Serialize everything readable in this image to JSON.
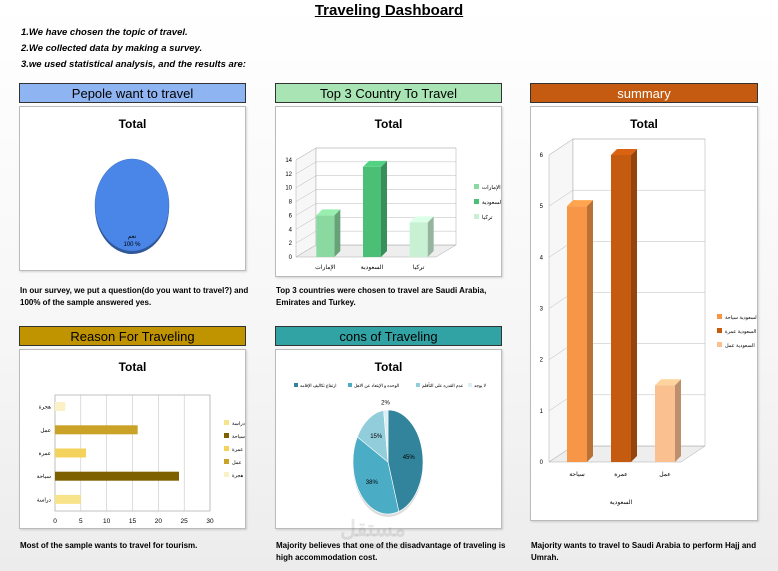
{
  "page": {
    "title": "Traveling Dashboard",
    "intro": [
      "1.We have chosen the topic of travel.",
      "2.We collected data by making a survey.",
      "3.we used statistical analysis, and the results are:"
    ],
    "watermark": "مستقل",
    "watermark_url": "mostaql.com"
  },
  "panels": {
    "people": {
      "header": "Pepole want to travel",
      "header_color": "#8fb4f2",
      "caption": "In our survey, we put a question(do you want to travel?) and 100% of the sample answered yes."
    },
    "top3": {
      "header": "Top 3 Country To Travel",
      "header_color": "#a8e4b4",
      "caption": "Top 3 countries were chosen to travel are Saudi Arabia, Emirates and Turkey."
    },
    "summary": {
      "header": "summary",
      "header_color": "#c55a11",
      "caption": "Majority wants to travel to Saudi Arabia to perform Hajj and Umrah."
    },
    "reason": {
      "header": "Reason For Traveling",
      "header_color": "#c09300",
      "caption": "Most of the sample wants to travel for tourism."
    },
    "cons": {
      "header": "cons of Traveling",
      "header_color": "#31a3a5",
      "caption": "Majority believes that one of the disadvantage of traveling is high accommodation cost."
    }
  },
  "chart_data": [
    {
      "id": "people",
      "type": "pie",
      "title": "Total",
      "categories": [
        "نعم"
      ],
      "values": [
        100
      ],
      "data_labels": [
        "نعم",
        "100 %"
      ],
      "colors": [
        "#4a86e8"
      ]
    },
    {
      "id": "top3",
      "type": "bar",
      "title": "Total",
      "categories": [
        "الإمارات",
        "السعودية",
        "تركيا"
      ],
      "values": [
        6,
        13,
        5
      ],
      "ylim": [
        0,
        14
      ],
      "yticks": [
        0,
        2,
        4,
        6,
        8,
        10,
        12,
        14
      ],
      "legend": [
        "الإمارات",
        "السعودية",
        "تركيا"
      ],
      "legend_position": "right",
      "colors": [
        "#8ad9a0",
        "#4cbf77",
        "#c8f0d2"
      ]
    },
    {
      "id": "summary",
      "type": "bar",
      "title": "Total",
      "categories": [
        "سياحة",
        "عمرة",
        "عمل"
      ],
      "group_label": "السعودية",
      "values": [
        5,
        6,
        1.5
      ],
      "ylim": [
        0,
        6
      ],
      "yticks": [
        0,
        1,
        2,
        3,
        4,
        5,
        6
      ],
      "legend": [
        "السعودية سياحة",
        "السعودية عمرة",
        "السعودية عمل"
      ],
      "legend_position": "right",
      "colors": [
        "#f79646",
        "#c55a11",
        "#fac090"
      ]
    },
    {
      "id": "reason",
      "type": "bar",
      "orientation": "horizontal",
      "title": "Total",
      "categories": [
        "هجرة",
        "عمل",
        "عمرة",
        "سياحة",
        "دراسة"
      ],
      "values": [
        2,
        16,
        6,
        24,
        5
      ],
      "xlim": [
        0,
        30
      ],
      "xticks": [
        0,
        5,
        10,
        15,
        20,
        25,
        30
      ],
      "legend": [
        "دراسة",
        "سياحة",
        "عمرة",
        "عمل",
        "هجرة"
      ],
      "legend_position": "right",
      "colors": [
        "#f7e48a",
        "#7f6000",
        "#f3d35b",
        "#c9a227",
        "#fbf1c7"
      ]
    },
    {
      "id": "cons",
      "type": "pie",
      "title": "Total",
      "categories": [
        "ارتفاع تكاليف الإقامه",
        "الوحده و الإبتعاد عن الاهل",
        "عدم القدره على التأقلم",
        "لا يوجد"
      ],
      "values": [
        45,
        38,
        15,
        2
      ],
      "data_labels": [
        "45%",
        "38%",
        "15%",
        "2%"
      ],
      "legend_position": "top",
      "colors": [
        "#31849b",
        "#4bacc6",
        "#92cddc",
        "#daeef3"
      ]
    }
  ]
}
